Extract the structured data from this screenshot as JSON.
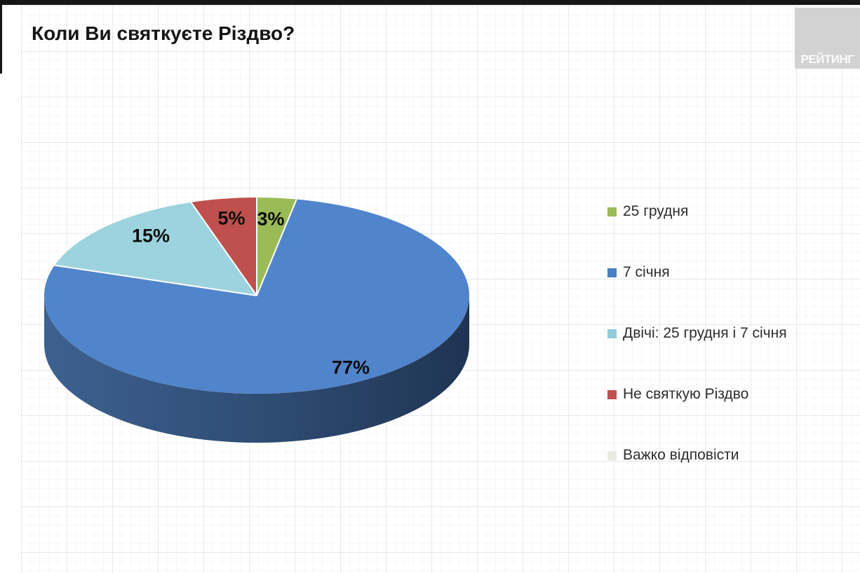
{
  "header": {
    "title": "Коли Ви святкуєте Різдво?",
    "logo_text": "РЕЙТИНГ"
  },
  "chart_data": {
    "type": "pie",
    "title": "Коли Ви святкуєте Різдво?",
    "effect": "3d",
    "direction": "clockwise",
    "start_angle_deg_from_top": 0,
    "label_format": "percent",
    "legend_position": "right",
    "labels": [
      "25 грудня",
      "7 січня",
      "Двічі: 25 грудня і 7 січня",
      "Не святкую Різдво",
      "Важко відповісти"
    ],
    "values": [
      3,
      77,
      15,
      5,
      0
    ],
    "colors": [
      "#9ABB56",
      "#5185CB",
      "#9DD3DE",
      "#C0504D",
      "#EAEAE4"
    ],
    "side_gradient": [
      "#3D6190",
      "#2E4B72",
      "#203452"
    ],
    "slice_border_color": "#FFFFFF"
  },
  "legend": {
    "items": [
      {
        "label": "25 грудня",
        "color": "#9ABB56"
      },
      {
        "label": "7 січня",
        "color": "#4A80C4"
      },
      {
        "label": "Двічі: 25 грудня і 7 січня",
        "color": "#92CBDB"
      },
      {
        "label": "Не святкую Різдво",
        "color": "#C0504D"
      },
      {
        "label": "Важко відповісти",
        "color": "#EAEAE4"
      }
    ]
  }
}
